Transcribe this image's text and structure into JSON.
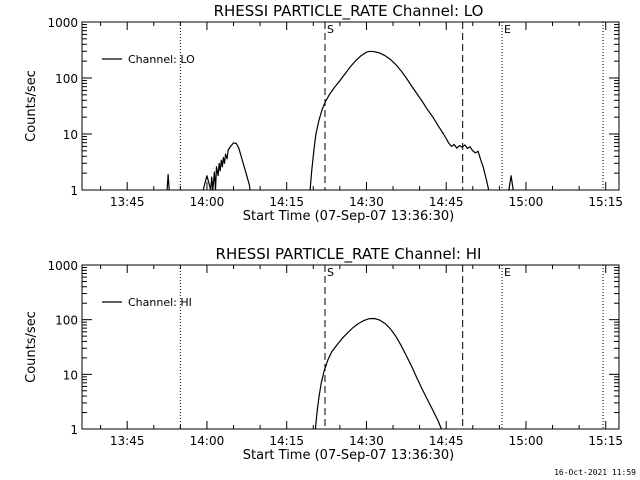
{
  "chart_data": [
    {
      "type": "line",
      "title": "RHESSI PARTICLE_RATE Channel: LO",
      "xlabel": "Start Time (07-Sep-07 13:36:30)",
      "ylabel": "Counts/sec",
      "yscale": "log",
      "ylim": [
        1,
        1000
      ],
      "xlim_minutes": [
        0,
        101
      ],
      "x_ticks": [
        {
          "t": 8.5,
          "label": "13:45"
        },
        {
          "t": 23.5,
          "label": "14:00"
        },
        {
          "t": 38.5,
          "label": "14:15"
        },
        {
          "t": 53.5,
          "label": "14:30"
        },
        {
          "t": 68.5,
          "label": "14:45"
        },
        {
          "t": 83.5,
          "label": "15:00"
        },
        {
          "t": 98.5,
          "label": "15:15"
        }
      ],
      "y_ticks": [
        {
          "v": 1,
          "label": "1"
        },
        {
          "v": 10,
          "label": "10"
        },
        {
          "v": 100,
          "label": "100"
        },
        {
          "v": 1000,
          "label": "1000"
        }
      ],
      "legend": "Channel: LO",
      "markers": [
        {
          "t": 45.7,
          "style": "dashed",
          "label": "S"
        },
        {
          "t": 71.6,
          "style": "dashed",
          "label": ""
        },
        {
          "t": 79.0,
          "style": "dotted",
          "label": "E"
        },
        {
          "t": 18.5,
          "style": "dotted",
          "label": ""
        },
        {
          "t": 98.0,
          "style": "dotted",
          "label": ""
        }
      ],
      "segments": [
        [
          [
            15.8,
            0.5
          ],
          [
            16.0,
            1.0
          ],
          [
            16.2,
            1.9
          ],
          [
            16.4,
            1.0
          ],
          [
            16.6,
            0.5
          ]
        ],
        [
          [
            22.6,
            0.5
          ],
          [
            22.8,
            1.0
          ],
          [
            23.5,
            1.8
          ],
          [
            24.2,
            1.0
          ],
          [
            24.4,
            1.7
          ],
          [
            24.6,
            1.0
          ],
          [
            24.9,
            2.1
          ],
          [
            25.1,
            1.0
          ],
          [
            25.3,
            2.6
          ],
          [
            25.6,
            1.8
          ],
          [
            25.8,
            3.0
          ],
          [
            26.0,
            2.2
          ],
          [
            26.2,
            3.4
          ],
          [
            26.4,
            2.6
          ],
          [
            26.6,
            3.8
          ],
          [
            26.8,
            3.0
          ],
          [
            27.0,
            4.4
          ],
          [
            27.3,
            3.6
          ],
          [
            27.5,
            5.2
          ],
          [
            28.0,
            6.1
          ],
          [
            28.5,
            6.9
          ],
          [
            29.0,
            6.8
          ],
          [
            29.5,
            5.6
          ],
          [
            30.0,
            3.8
          ],
          [
            30.5,
            2.6
          ],
          [
            31.0,
            1.8
          ],
          [
            31.5,
            1.2
          ],
          [
            32.0,
            0.5
          ]
        ],
        [
          [
            42.6,
            0.5
          ],
          [
            42.9,
            1.0
          ],
          [
            43.2,
            2.2
          ],
          [
            43.6,
            5.0
          ],
          [
            44.0,
            10.0
          ],
          [
            44.6,
            18.0
          ],
          [
            45.2,
            28.0
          ],
          [
            45.8,
            38.0
          ],
          [
            46.5,
            50.0
          ],
          [
            47.5,
            68.0
          ],
          [
            48.5,
            90.0
          ],
          [
            49.5,
            120.0
          ],
          [
            50.5,
            160.0
          ],
          [
            51.5,
            205.0
          ],
          [
            52.5,
            250.0
          ],
          [
            53.5,
            290.0
          ],
          [
            54.2,
            300.0
          ],
          [
            55.0,
            295.0
          ],
          [
            56.0,
            280.0
          ],
          [
            57.0,
            250.0
          ],
          [
            58.0,
            215.0
          ],
          [
            59.0,
            175.0
          ],
          [
            60.0,
            135.0
          ],
          [
            61.0,
            100.0
          ],
          [
            62.0,
            72.0
          ],
          [
            63.0,
            52.0
          ],
          [
            64.0,
            38.0
          ],
          [
            65.0,
            27.0
          ],
          [
            66.0,
            20.0
          ],
          [
            67.0,
            14.0
          ],
          [
            68.0,
            10.0
          ],
          [
            68.6,
            8.0
          ],
          [
            69.0,
            6.8
          ],
          [
            69.5,
            6.0
          ],
          [
            70.0,
            6.5
          ],
          [
            70.5,
            5.6
          ],
          [
            71.0,
            6.2
          ],
          [
            71.5,
            5.8
          ],
          [
            72.0,
            6.4
          ],
          [
            72.5,
            5.5
          ],
          [
            73.0,
            5.9
          ],
          [
            73.5,
            5.0
          ],
          [
            74.0,
            4.6
          ],
          [
            74.5,
            4.9
          ],
          [
            75.0,
            3.4
          ],
          [
            75.5,
            2.5
          ],
          [
            76.0,
            1.6
          ],
          [
            76.5,
            1.0
          ],
          [
            76.9,
            0.5
          ]
        ],
        [
          [
            80.0,
            0.5
          ],
          [
            80.3,
            1.0
          ],
          [
            80.7,
            1.8
          ],
          [
            81.1,
            1.0
          ],
          [
            81.3,
            0.5
          ]
        ]
      ]
    },
    {
      "type": "line",
      "title": "RHESSI PARTICLE_RATE Channel: HI",
      "xlabel": "Start Time (07-Sep-07 13:36:30)",
      "ylabel": "Counts/sec",
      "yscale": "log",
      "ylim": [
        1,
        1000
      ],
      "xlim_minutes": [
        0,
        101
      ],
      "x_ticks": [
        {
          "t": 8.5,
          "label": "13:45"
        },
        {
          "t": 23.5,
          "label": "14:00"
        },
        {
          "t": 38.5,
          "label": "14:15"
        },
        {
          "t": 53.5,
          "label": "14:30"
        },
        {
          "t": 68.5,
          "label": "14:45"
        },
        {
          "t": 83.5,
          "label": "15:00"
        },
        {
          "t": 98.5,
          "label": "15:15"
        }
      ],
      "y_ticks": [
        {
          "v": 1,
          "label": "1"
        },
        {
          "v": 10,
          "label": "10"
        },
        {
          "v": 100,
          "label": "100"
        },
        {
          "v": 1000,
          "label": "1000"
        }
      ],
      "legend": "Channel: HI",
      "markers": [
        {
          "t": 45.7,
          "style": "dashed",
          "label": "S"
        },
        {
          "t": 71.6,
          "style": "dashed",
          "label": ""
        },
        {
          "t": 79.0,
          "style": "dotted",
          "label": "E"
        },
        {
          "t": 18.5,
          "style": "dotted",
          "label": ""
        },
        {
          "t": 98.0,
          "style": "dotted",
          "label": ""
        }
      ],
      "segments": [
        [
          [
            43.6,
            0.5
          ],
          [
            43.9,
            1.0
          ],
          [
            44.2,
            2.0
          ],
          [
            44.6,
            4.0
          ],
          [
            45.0,
            7.0
          ],
          [
            45.6,
            12.0
          ],
          [
            46.3,
            19.0
          ],
          [
            47.0,
            26.0
          ],
          [
            48.0,
            35.0
          ],
          [
            49.0,
            46.0
          ],
          [
            50.0,
            58.0
          ],
          [
            51.0,
            72.0
          ],
          [
            52.0,
            85.0
          ],
          [
            53.0,
            96.0
          ],
          [
            54.0,
            104.0
          ],
          [
            55.0,
            105.0
          ],
          [
            56.0,
            98.0
          ],
          [
            57.0,
            85.0
          ],
          [
            58.0,
            68.0
          ],
          [
            59.0,
            50.0
          ],
          [
            60.0,
            34.0
          ],
          [
            61.0,
            22.0
          ],
          [
            62.0,
            14.0
          ],
          [
            63.0,
            8.5
          ],
          [
            64.0,
            5.3
          ],
          [
            65.0,
            3.4
          ],
          [
            66.0,
            2.2
          ],
          [
            67.0,
            1.4
          ],
          [
            67.6,
            1.0
          ],
          [
            68.0,
            0.5
          ]
        ]
      ]
    }
  ],
  "timestamp": "16-Oct-2021 11:59"
}
